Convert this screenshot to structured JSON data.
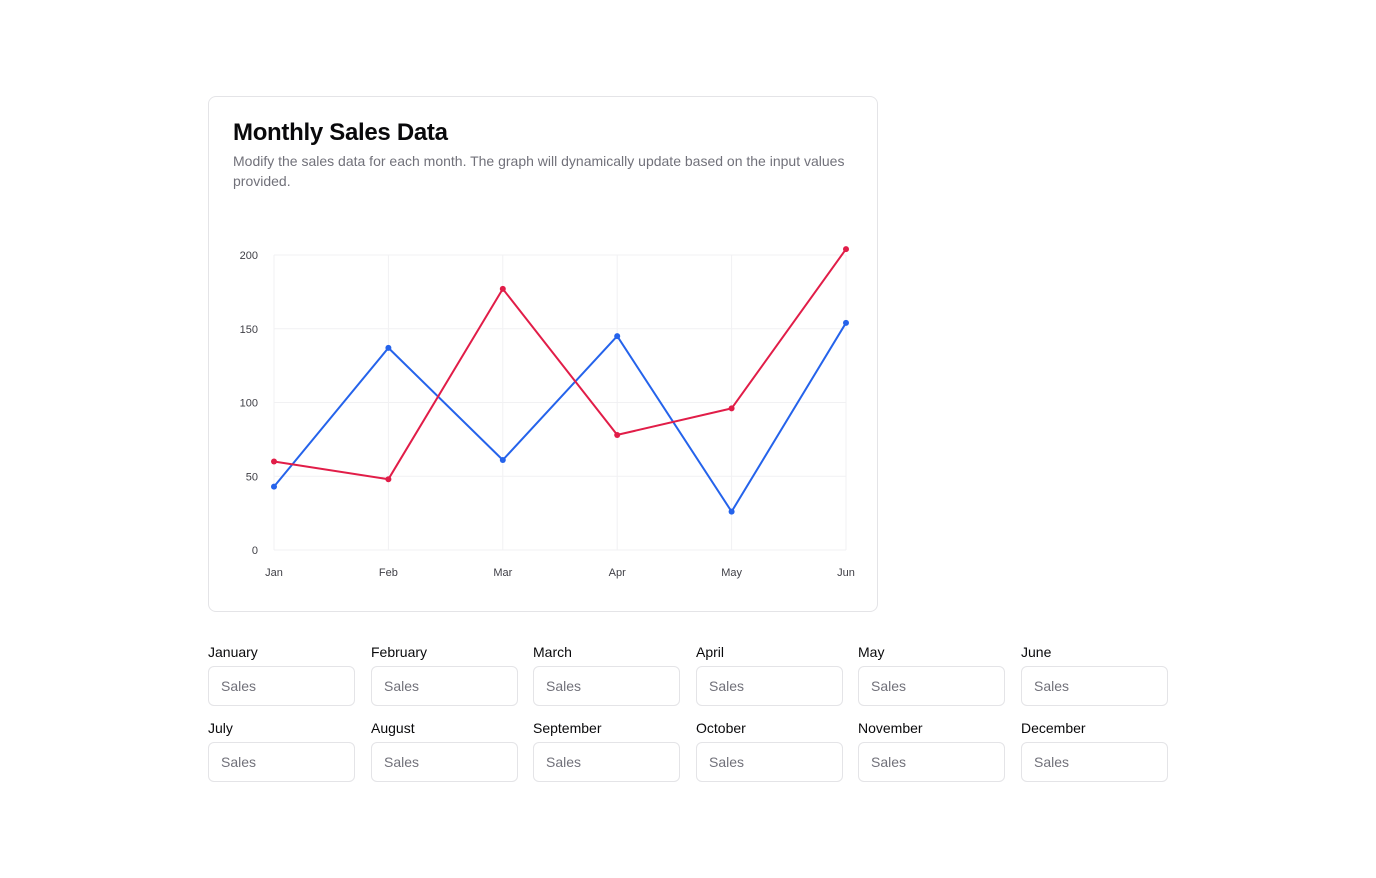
{
  "card": {
    "title": "Monthly Sales Data",
    "description": "Modify the sales data for each month. The graph will dynamically update based on the input values provided."
  },
  "chart_data": {
    "type": "line",
    "categories": [
      "Jan",
      "Feb",
      "Mar",
      "Apr",
      "May",
      "Jun"
    ],
    "ylim": [
      0,
      200
    ],
    "yticks": [
      0,
      50,
      100,
      150,
      200
    ],
    "grid": true,
    "series": [
      {
        "color": "#2563eb",
        "values": [
          43,
          137,
          61,
          145,
          26,
          154
        ]
      },
      {
        "color": "#e11d48",
        "values": [
          60,
          48,
          177,
          78,
          96,
          204
        ]
      }
    ]
  },
  "inputs": [
    {
      "label": "January",
      "placeholder": "Sales",
      "value": ""
    },
    {
      "label": "February",
      "placeholder": "Sales",
      "value": ""
    },
    {
      "label": "March",
      "placeholder": "Sales",
      "value": ""
    },
    {
      "label": "April",
      "placeholder": "Sales",
      "value": ""
    },
    {
      "label": "May",
      "placeholder": "Sales",
      "value": ""
    },
    {
      "label": "June",
      "placeholder": "Sales",
      "value": ""
    },
    {
      "label": "July",
      "placeholder": "Sales",
      "value": ""
    },
    {
      "label": "August",
      "placeholder": "Sales",
      "value": ""
    },
    {
      "label": "September",
      "placeholder": "Sales",
      "value": ""
    },
    {
      "label": "October",
      "placeholder": "Sales",
      "value": ""
    },
    {
      "label": "November",
      "placeholder": "Sales",
      "value": ""
    },
    {
      "label": "December",
      "placeholder": "Sales",
      "value": ""
    }
  ]
}
